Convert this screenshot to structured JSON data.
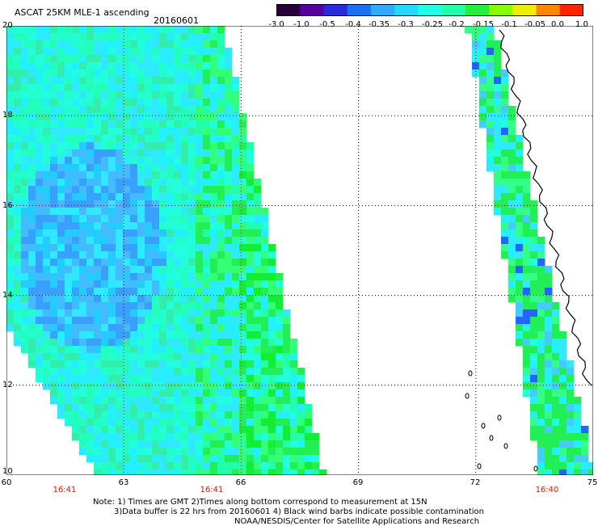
{
  "header": {
    "title": "ASCAT 25KM MLE-1 ascending",
    "date": "20160601"
  },
  "colorbar": {
    "ticks": [
      "-3.0",
      "-1.0",
      "-0.5",
      "-0.4",
      "-0.35",
      "-0.3",
      "-0.25",
      "-0.2",
      "-0.15",
      "-0.1",
      "-0.05",
      "0.0",
      "1.0"
    ],
    "colors": [
      "#2a003a",
      "#5a009a",
      "#2a2adc",
      "#1a70f0",
      "#33a8ff",
      "#22d8ff",
      "#22ffe8",
      "#22ffaa",
      "#22ee44",
      "#88ff00",
      "#eeee00",
      "#ff8800",
      "#ff2200"
    ]
  },
  "map": {
    "lat_labels": [
      "20",
      "18",
      "16",
      "14",
      "12",
      "10"
    ],
    "lon_labels": [
      "60",
      "63",
      "66",
      "69",
      "72",
      "75"
    ],
    "time_labels": [
      "16:41",
      "16:41",
      "16:40"
    ]
  },
  "footer": {
    "note_line1": "Note: 1) Times are GMT 2)Times along bottom correspond to measurement at 15N",
    "note_line2": "3)Data buffer is 22 hrs from 20160601 4) Black wind barbs indicate possible contamination",
    "credit": "NOAA/NESDIS/Center for Satellite Applications and Research"
  }
}
